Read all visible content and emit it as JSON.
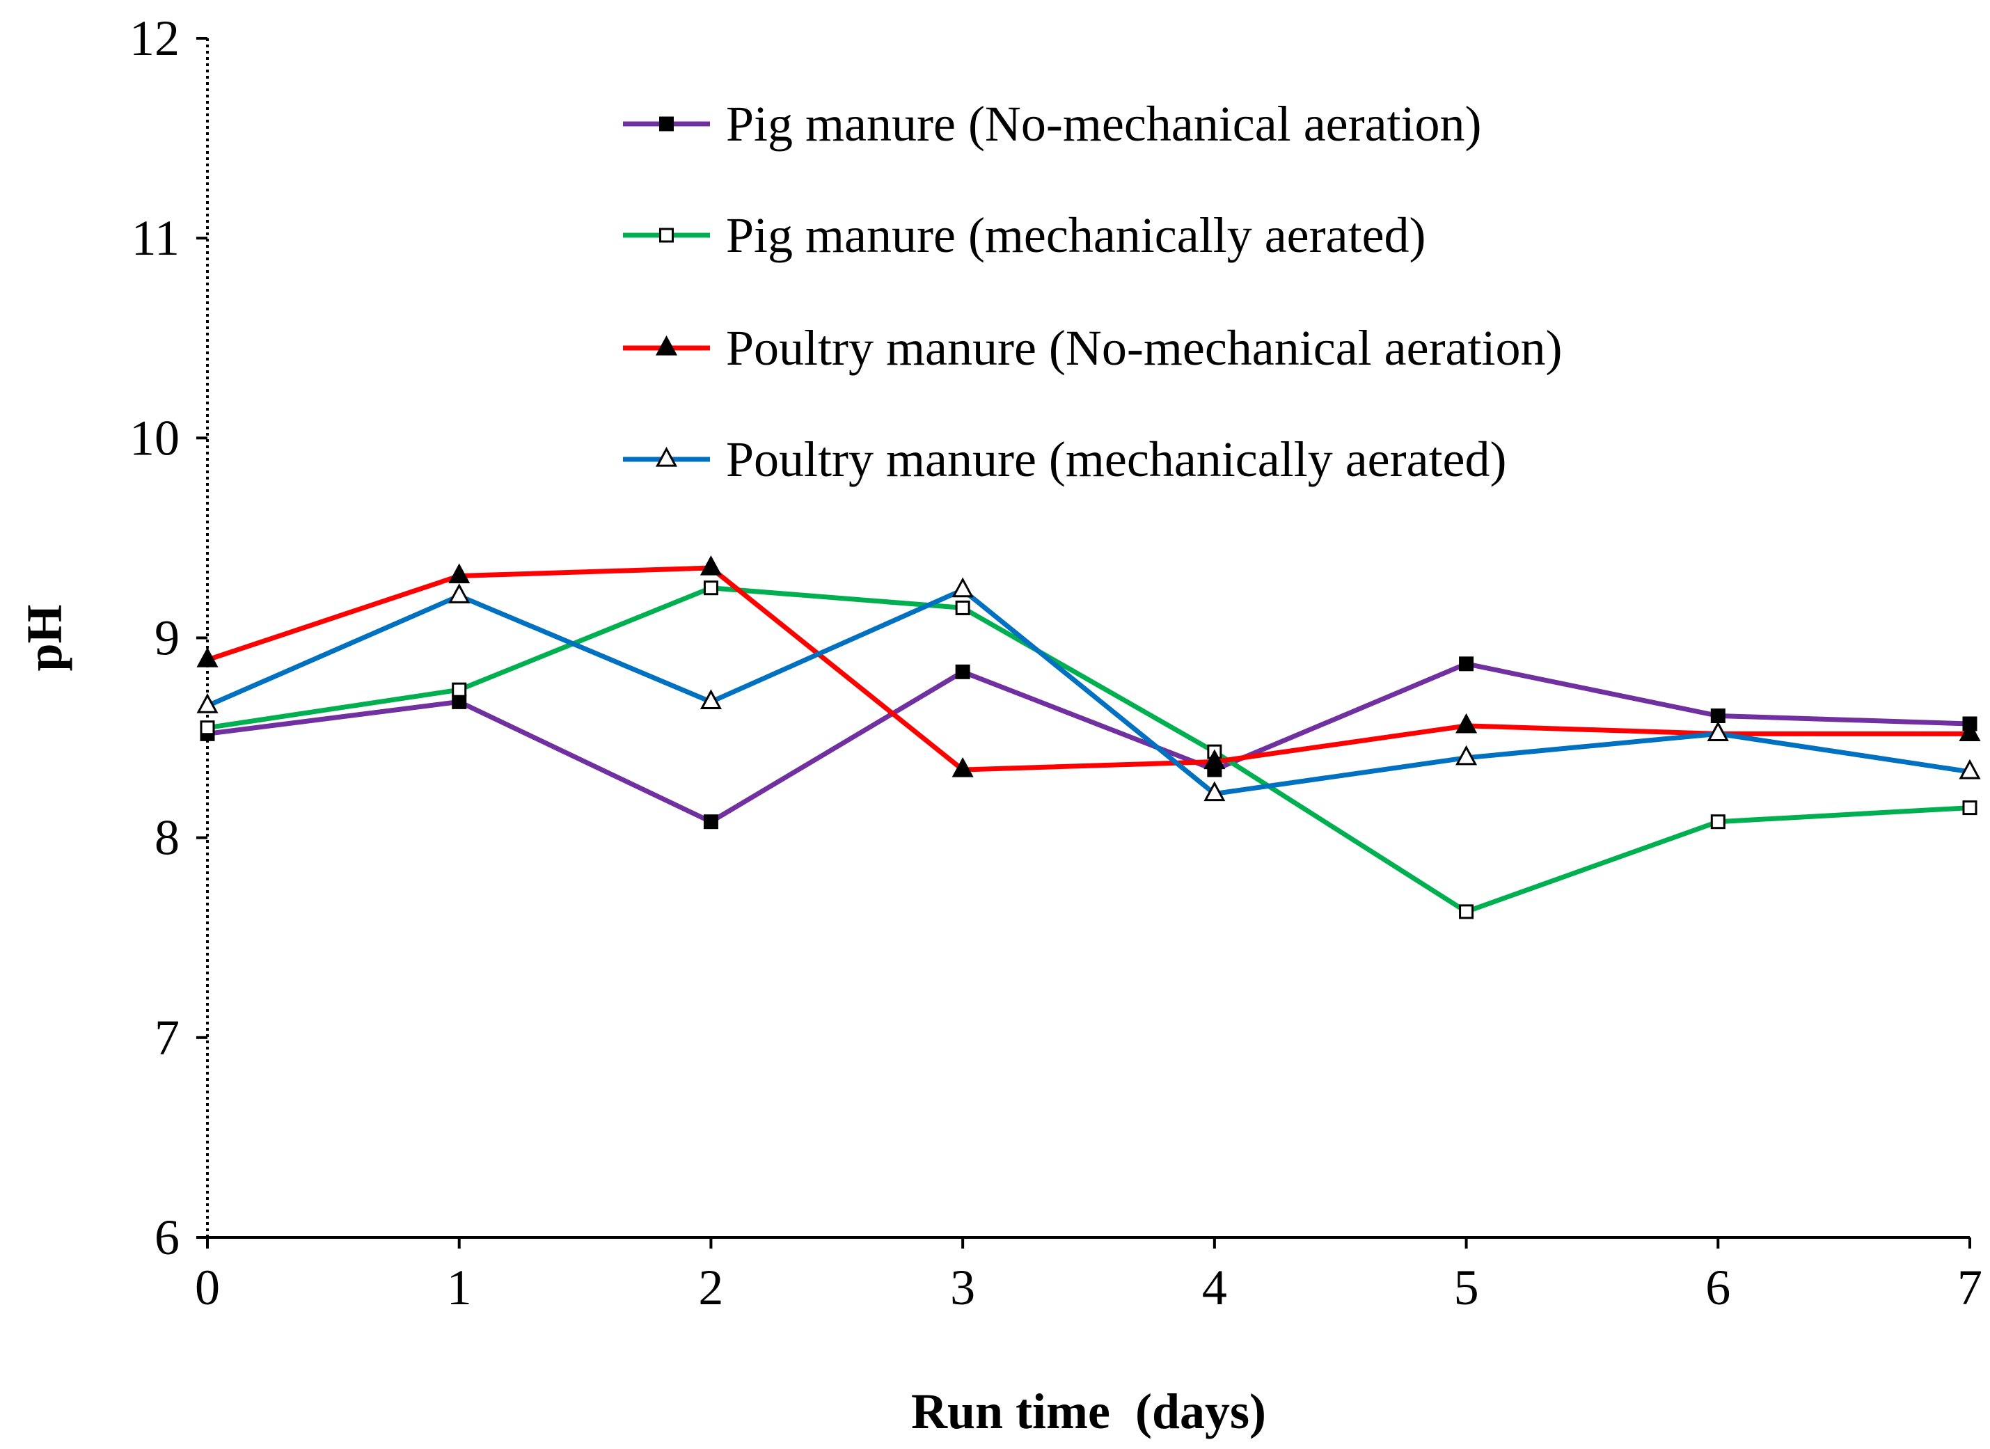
{
  "chart_data": {
    "type": "line",
    "title": "",
    "xlabel": "Run time  (days)",
    "ylabel": "pH",
    "xlim": [
      0,
      7
    ],
    "ylim": [
      6,
      12
    ],
    "x": [
      0,
      1,
      2,
      3,
      4,
      5,
      6,
      7
    ],
    "x_tick_labels": [
      "0",
      "1",
      "2",
      "3",
      "4",
      "5",
      "6",
      "7"
    ],
    "y_ticks": [
      6,
      7,
      8,
      9,
      10,
      11,
      12
    ],
    "y_tick_labels": [
      "6",
      "7",
      "8",
      "9",
      "10",
      "11",
      "12"
    ],
    "grid": false,
    "legend_position": "top-right",
    "series": [
      {
        "name": "Pig manure (No-mechanical aeration)",
        "color": "#7030A0",
        "marker": "square-filled",
        "values": [
          8.52,
          8.68,
          8.08,
          8.83,
          8.34,
          8.87,
          8.61,
          8.57
        ]
      },
      {
        "name": "Pig manure (mechanically aerated)",
        "color": "#00B050",
        "marker": "square-open",
        "values": [
          8.55,
          8.74,
          9.25,
          9.15,
          8.43,
          7.63,
          8.08,
          8.15
        ]
      },
      {
        "name": "Poultry manure (No-mechanical aeration)",
        "color": "#FF0000",
        "marker": "triangle-filled",
        "values": [
          8.89,
          9.31,
          9.35,
          8.34,
          8.38,
          8.56,
          8.52,
          8.52
        ]
      },
      {
        "name": "Poultry manure (mechanically aerated)",
        "color": "#0070C0",
        "marker": "triangle-open",
        "values": [
          8.66,
          9.21,
          8.68,
          9.24,
          8.22,
          8.4,
          8.52,
          8.33
        ]
      }
    ]
  }
}
